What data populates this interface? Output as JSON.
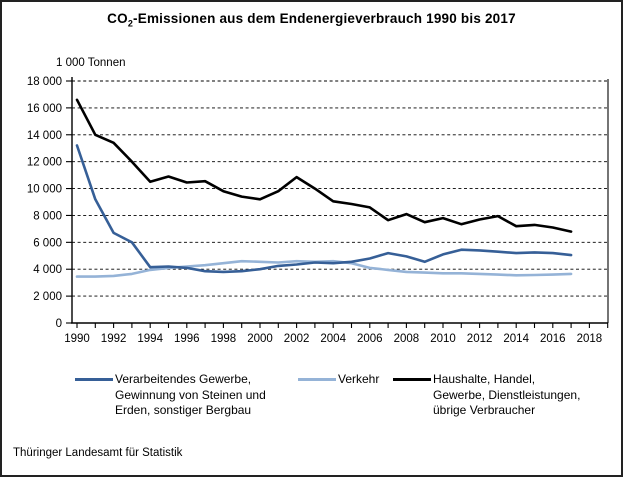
{
  "title": {
    "prefix": "CO",
    "sub": "2",
    "rest": "-Emissionen aus dem Endenergieverbrauch 1990 bis 2017"
  },
  "y_axis_label": "1 000 Tonnen",
  "footer": "Thüringer Landesamt für Statistik",
  "chart_data": {
    "type": "line",
    "title": "CO2-Emissionen aus dem Endenergieverbrauch 1990 bis 2017",
    "ylabel": "1 000 Tonnen",
    "xlabel": "",
    "grid": "horizontal-dashed",
    "legend_position": "bottom",
    "ylim": [
      0,
      18000
    ],
    "ytick_step": 2000,
    "y_tick_labels": [
      "0",
      "2 000",
      "4 000",
      "6 000",
      "8 000",
      "10 000",
      "12 000",
      "14 000",
      "16 000",
      "18 000"
    ],
    "x_tick_labels": [
      "1990",
      "1992",
      "1994",
      "1996",
      "1998",
      "2000",
      "2002",
      "2004",
      "2006",
      "2008",
      "2010",
      "2012",
      "2014",
      "2016",
      "2018"
    ],
    "x": [
      1990,
      1991,
      1992,
      1993,
      1994,
      1995,
      1996,
      1997,
      1998,
      1999,
      2000,
      2001,
      2002,
      2003,
      2004,
      2005,
      2006,
      2007,
      2008,
      2009,
      2010,
      2011,
      2012,
      2013,
      2014,
      2015,
      2016,
      2017
    ],
    "series": [
      {
        "name": "Verarbeitendes Gewerbe, Gewinnung von Steinen und Erden, sonstiger Bergbau",
        "legend_lines": [
          "Verarbeitendes Gewerbe,",
          "Gewinnung von Steinen und",
          "Erden, sonstiger Bergbau"
        ],
        "color": "#365F97",
        "values": [
          13200,
          9200,
          6700,
          6000,
          4150,
          4200,
          4100,
          3850,
          3800,
          3850,
          4000,
          4250,
          4350,
          4500,
          4450,
          4550,
          4800,
          5200,
          4950,
          4550,
          5100,
          5450,
          5400,
          5300,
          5200,
          5250,
          5200,
          5050
        ]
      },
      {
        "name": "Verkehr",
        "legend_lines": [
          "Verkehr"
        ],
        "color": "#95B3D7",
        "values": [
          3450,
          3450,
          3500,
          3650,
          3950,
          4100,
          4200,
          4300,
          4450,
          4600,
          4550,
          4500,
          4600,
          4550,
          4600,
          4450,
          4100,
          3950,
          3800,
          3750,
          3700,
          3700,
          3650,
          3600,
          3550,
          3570,
          3600,
          3650
        ]
      },
      {
        "name": "Haushalte, Handel, Gewerbe, Dienstleistungen, übrige Verbraucher",
        "legend_lines": [
          "Haushalte, Handel,",
          "Gewerbe, Dienstleistungen,",
          "übrige Verbraucher"
        ],
        "color": "#000000",
        "values": [
          16600,
          14000,
          13400,
          12000,
          10500,
          10900,
          10450,
          10550,
          9800,
          9400,
          9200,
          9800,
          10850,
          10000,
          9050,
          8850,
          8600,
          7650,
          8100,
          7500,
          7800,
          7350,
          7700,
          7950,
          7200,
          7300,
          7100,
          6800
        ]
      }
    ]
  }
}
